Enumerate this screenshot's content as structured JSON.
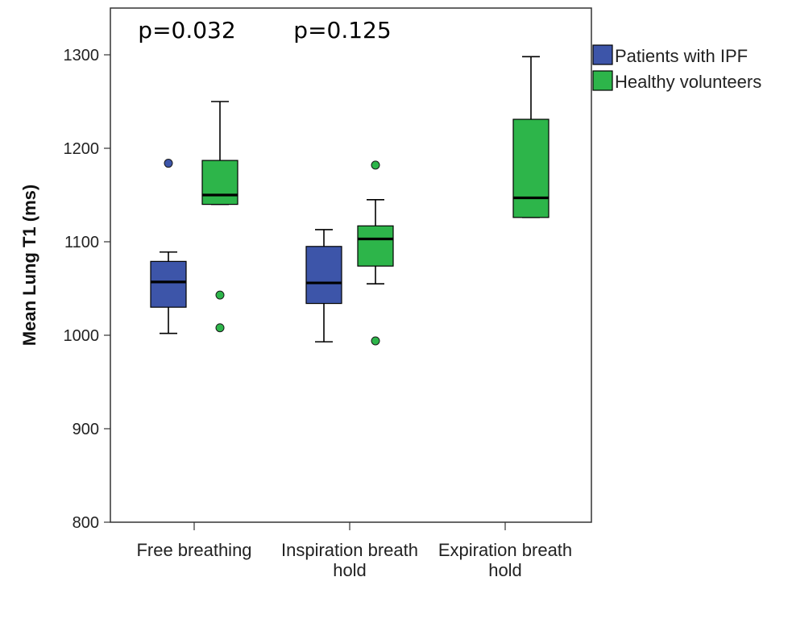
{
  "chart_data": {
    "type": "boxplot",
    "ylabel": "Mean Lung T1 (ms)",
    "xlabel": "",
    "ylim": [
      800,
      1350
    ],
    "yticks": [
      800,
      900,
      1000,
      1100,
      1200,
      1300
    ],
    "categories": [
      {
        "lines": [
          "Free breathing"
        ]
      },
      {
        "lines": [
          "Inspiration breath",
          "hold"
        ]
      },
      {
        "lines": [
          "Expiration breath",
          "hold"
        ]
      }
    ],
    "series": [
      {
        "name": "Patients with IPF",
        "color": "#3d55a9",
        "boxes": [
          {
            "category": 0,
            "whisker_low": 1002,
            "q1": 1030,
            "median": 1057,
            "q3": 1079,
            "whisker_high": 1089,
            "outliers": [
              1184
            ]
          },
          {
            "category": 1,
            "whisker_low": 993,
            "q1": 1034,
            "median": 1056,
            "q3": 1095,
            "whisker_high": 1113,
            "outliers": []
          }
        ]
      },
      {
        "name": "Healthy volunteers",
        "color": "#2db54a",
        "boxes": [
          {
            "category": 0,
            "whisker_low": 1140,
            "q1": 1140,
            "median": 1150,
            "q3": 1187,
            "whisker_high": 1250,
            "outliers": [
              1043,
              1008
            ]
          },
          {
            "category": 1,
            "whisker_low": 1055,
            "q1": 1074,
            "median": 1103,
            "q3": 1117,
            "whisker_high": 1145,
            "outliers": [
              1182,
              994
            ]
          },
          {
            "category": 2,
            "whisker_low": 1126,
            "q1": 1126,
            "median": 1147,
            "q3": 1231,
            "whisker_high": 1298,
            "outliers": []
          }
        ]
      }
    ],
    "annotations": [
      {
        "text": "p=0.032",
        "category": 0
      },
      {
        "text": "p=0.125",
        "category": 1
      }
    ],
    "legend_position": "top-right"
  }
}
